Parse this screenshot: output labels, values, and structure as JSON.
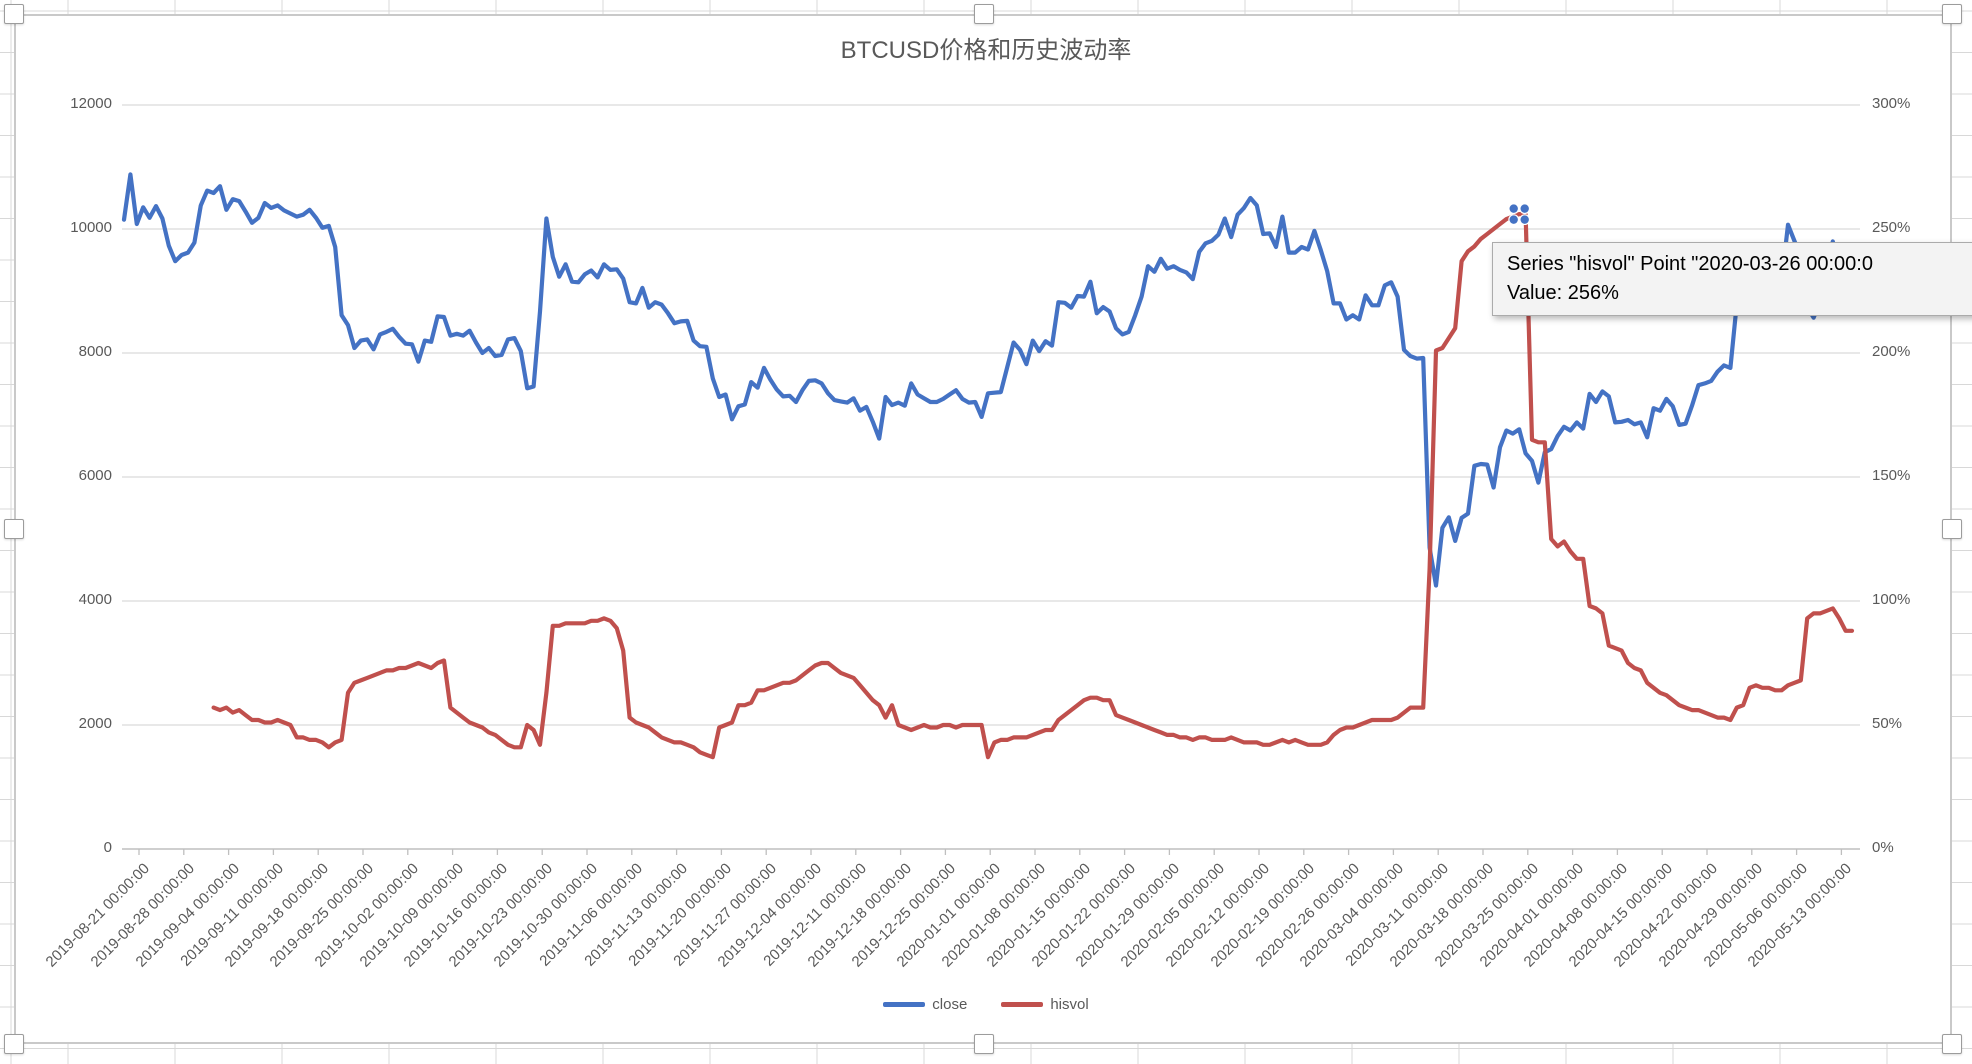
{
  "title": "BTCUSD价格和历史波动率",
  "legend": [
    {
      "label": "close",
      "color": "#4472C4"
    },
    {
      "label": "hisvol",
      "color": "#C0504D"
    }
  ],
  "tooltip": {
    "line1": "Series \"hisvol\" Point \"2020-03-26 00:00:0",
    "line2": "Value: 256%"
  },
  "axes": {
    "left_ticks": [
      "0",
      "2000",
      "4000",
      "6000",
      "8000",
      "10000",
      "12000"
    ],
    "right_ticks": [
      "0%",
      "50%",
      "100%",
      "150%",
      "200%",
      "250%",
      "300%"
    ],
    "x_tick_labels": [
      "2019-08-21 00:00:00",
      "2019-08-28 00:00:00",
      "2019-09-04 00:00:00",
      "2019-09-11 00:00:00",
      "2019-09-18 00:00:00",
      "2019-09-25 00:00:00",
      "2019-10-02 00:00:00",
      "2019-10-09 00:00:00",
      "2019-10-16 00:00:00",
      "2019-10-23 00:00:00",
      "2019-10-30 00:00:00",
      "2019-11-06 00:00:00",
      "2019-11-13 00:00:00",
      "2019-11-20 00:00:00",
      "2019-11-27 00:00:00",
      "2019-12-04 00:00:00",
      "2019-12-11 00:00:00",
      "2019-12-18 00:00:00",
      "2019-12-25 00:00:00",
      "2020-01-01 00:00:00",
      "2020-01-08 00:00:00",
      "2020-01-15 00:00:00",
      "2020-01-22 00:00:00",
      "2020-01-29 00:00:00",
      "2020-02-05 00:00:00",
      "2020-02-12 00:00:00",
      "2020-02-19 00:00:00",
      "2020-02-26 00:00:00",
      "2020-03-04 00:00:00",
      "2020-03-11 00:00:00",
      "2020-03-18 00:00:00",
      "2020-03-25 00:00:00",
      "2020-04-01 00:00:00",
      "2020-04-08 00:00:00",
      "2020-04-15 00:00:00",
      "2020-04-22 00:00:00",
      "2020-04-29 00:00:00",
      "2020-05-06 00:00:00",
      "2020-05-13 00:00:00"
    ]
  },
  "chart_data": {
    "type": "line",
    "title": "BTCUSD价格和历史波动率",
    "x_start": "2019-08-21 00:00:00",
    "x_interval": "1 day",
    "x_tick_interval": "7 days",
    "left_axis": {
      "min": 0,
      "max": 12000,
      "step": 2000
    },
    "right_axis": {
      "min": 0,
      "max": 300,
      "step": 50,
      "unit": "%"
    },
    "grid": true,
    "legend_position": "bottom",
    "selected_point": {
      "series": "hisvol",
      "x": "2020-03-26 00:00:00",
      "value_pct": 256,
      "x_index": 218
    },
    "series": [
      {
        "name": "close",
        "axis": "left",
        "color": "#4472C4",
        "values": [
          10150,
          10880,
          10080,
          10350,
          10180,
          10370,
          10170,
          9730,
          9480,
          9580,
          9620,
          9780,
          10380,
          10620,
          10580,
          10690,
          10310,
          10480,
          10450,
          10280,
          10100,
          10180,
          10420,
          10340,
          10380,
          10300,
          10250,
          10200,
          10230,
          10310,
          10180,
          10020,
          10050,
          9710,
          8610,
          8450,
          8080,
          8200,
          8220,
          8060,
          8300,
          8340,
          8390,
          8260,
          8150,
          8140,
          7860,
          8200,
          8180,
          8590,
          8580,
          8280,
          8310,
          8280,
          8360,
          8170,
          8000,
          8080,
          7950,
          7970,
          8220,
          8240,
          8030,
          7430,
          7460,
          8670,
          10170,
          9550,
          9230,
          9430,
          9150,
          9140,
          9270,
          9330,
          9220,
          9430,
          9340,
          9350,
          9200,
          8820,
          8800,
          9050,
          8730,
          8820,
          8780,
          8640,
          8480,
          8510,
          8520,
          8200,
          8110,
          8100,
          7590,
          7290,
          7330,
          6930,
          7140,
          7170,
          7530,
          7440,
          7760,
          7570,
          7410,
          7300,
          7310,
          7210,
          7400,
          7550,
          7560,
          7510,
          7350,
          7240,
          7220,
          7200,
          7270,
          7070,
          7130,
          6890,
          6620,
          7290,
          7160,
          7200,
          7150,
          7510,
          7330,
          7270,
          7210,
          7210,
          7260,
          7330,
          7400,
          7260,
          7200,
          7210,
          6970,
          7350,
          7360,
          7370,
          7770,
          8170,
          8050,
          7820,
          8200,
          8030,
          8190,
          8120,
          8820,
          8810,
          8730,
          8920,
          8910,
          9150,
          8640,
          8740,
          8670,
          8400,
          8300,
          8340,
          8610,
          8910,
          9400,
          9310,
          9520,
          9360,
          9400,
          9340,
          9300,
          9190,
          9630,
          9770,
          9810,
          9910,
          10170,
          9870,
          10230,
          10340,
          10500,
          10380,
          9920,
          9930,
          9710,
          10200,
          9620,
          9620,
          9710,
          9670,
          9970,
          9660,
          9320,
          8800,
          8800,
          8540,
          8610,
          8540,
          8930,
          8770,
          8770,
          9090,
          9140,
          8910,
          8050,
          7950,
          7910,
          7920,
          4860,
          4250,
          5180,
          5350,
          4970,
          5340,
          5410,
          6180,
          6210,
          6200,
          5830,
          6480,
          6750,
          6700,
          6770,
          6380,
          6260,
          5910,
          6400,
          6450,
          6660,
          6810,
          6750,
          6880,
          6780,
          7340,
          7210,
          7380,
          7300,
          6880,
          6890,
          6920,
          6850,
          6880,
          6640,
          7110,
          7070,
          7260,
          7140,
          6840,
          6860,
          7150,
          7480,
          7510,
          7550,
          7700,
          7800,
          7760,
          8800,
          8630,
          8840,
          8980,
          8900,
          8880,
          9030,
          9160,
          10070,
          9810,
          9560,
          8740,
          8570,
          8820,
          9280,
          9800,
          9320,
          9390,
          9680
        ]
      },
      {
        "name": "hisvol",
        "axis": "right",
        "color": "#C0504D",
        "values": [
          null,
          null,
          null,
          null,
          null,
          null,
          null,
          null,
          null,
          null,
          null,
          null,
          null,
          null,
          57,
          56,
          57,
          55,
          56,
          54,
          52,
          52,
          51,
          51,
          52,
          51,
          50,
          45,
          45,
          44,
          44,
          43,
          41,
          43,
          44,
          63,
          67,
          68,
          69,
          70,
          71,
          72,
          72,
          73,
          73,
          74,
          75,
          74,
          73,
          75,
          76,
          57,
          55,
          53,
          51,
          50,
          49,
          47,
          46,
          44,
          42,
          41,
          41,
          50,
          48,
          42,
          63,
          90,
          90,
          91,
          91,
          91,
          91,
          92,
          92,
          93,
          92,
          89,
          80,
          53,
          51,
          50,
          49,
          47,
          45,
          44,
          43,
          43,
          42,
          41,
          39,
          38,
          37,
          49,
          50,
          51,
          58,
          58,
          59,
          64,
          64,
          65,
          66,
          67,
          67,
          68,
          70,
          72,
          74,
          75,
          75,
          73,
          71,
          70,
          69,
          66,
          63,
          60,
          58,
          53,
          58,
          50,
          49,
          48,
          49,
          50,
          49,
          49,
          50,
          50,
          49,
          50,
          50,
          50,
          50,
          37,
          43,
          44,
          44,
          45,
          45,
          45,
          46,
          47,
          48,
          48,
          52,
          54,
          56,
          58,
          60,
          61,
          61,
          60,
          60,
          54,
          53,
          52,
          51,
          50,
          49,
          48,
          47,
          46,
          46,
          45,
          45,
          44,
          45,
          45,
          44,
          44,
          44,
          45,
          44,
          43,
          43,
          43,
          42,
          42,
          43,
          44,
          43,
          44,
          43,
          42,
          42,
          42,
          43,
          46,
          48,
          49,
          49,
          50,
          51,
          52,
          52,
          52,
          52,
          53,
          55,
          57,
          57,
          57,
          113,
          201,
          202,
          206,
          210,
          237,
          241,
          243,
          246,
          248,
          250,
          252,
          254,
          255,
          256,
          256,
          165,
          164,
          164,
          125,
          122,
          124,
          120,
          117,
          117,
          98,
          97,
          95,
          82,
          81,
          80,
          75,
          73,
          72,
          67,
          65,
          63,
          62,
          60,
          58,
          57,
          56,
          56,
          55,
          54,
          53,
          53,
          52,
          57,
          58,
          65,
          66,
          65,
          65,
          64,
          64,
          66,
          67,
          68,
          93,
          95,
          95,
          96,
          97,
          93,
          88,
          88
        ]
      }
    ]
  },
  "colors": {
    "gridline": "#d9d9d9",
    "axis_line": "#bfbfbf",
    "axis_text": "#595959",
    "sheet_gridline": "#d8d8d8",
    "chart_border": "#c9c9c9",
    "marker": "#4472C4",
    "tooltip_bg": "#f3f3f3"
  }
}
